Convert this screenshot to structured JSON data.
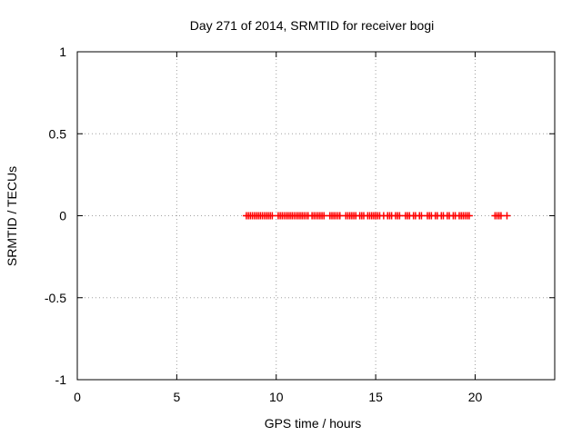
{
  "chart_data": {
    "type": "scatter",
    "title": "Day 271 of 2014, SRMTID for receiver bogi",
    "xlabel": "GPS time / hours",
    "ylabel": "SRMTID / TECUs",
    "xlim": [
      0,
      24
    ],
    "ylim": [
      -1,
      1
    ],
    "xticks": [
      0,
      5,
      10,
      15,
      20
    ],
    "yticks": [
      -1,
      -0.5,
      0,
      0.5,
      1
    ],
    "ytick_labels": [
      "-1",
      "-0.5",
      "0",
      "0.5",
      "1"
    ],
    "grid": true,
    "marker": "plus",
    "colors": {
      "series": "#ff0000",
      "grid": "#a0a0a0",
      "axes": "#000000"
    },
    "series": [
      {
        "x": [
          8.5,
          8.6,
          8.7,
          8.8,
          8.9,
          9.0,
          9.1,
          9.2,
          9.3,
          9.4,
          9.5,
          9.6,
          9.7,
          9.8,
          10.1,
          10.2,
          10.3,
          10.4,
          10.5,
          10.6,
          10.7,
          10.8,
          10.9,
          11.0,
          11.1,
          11.2,
          11.3,
          11.4,
          11.5,
          11.6,
          11.8,
          11.9,
          12.0,
          12.1,
          12.2,
          12.3,
          12.4,
          12.7,
          12.8,
          12.9,
          13.0,
          13.1,
          13.2,
          13.5,
          13.6,
          13.7,
          13.8,
          13.9,
          14.0,
          14.2,
          14.3,
          14.4,
          14.6,
          14.7,
          14.8,
          14.9,
          15.0,
          15.1,
          15.2,
          15.4,
          15.6,
          15.7,
          15.8,
          16.0,
          16.1,
          16.2,
          16.5,
          16.6,
          16.7,
          16.9,
          17.0,
          17.2,
          17.3,
          17.6,
          17.7,
          17.8,
          18.0,
          18.1,
          18.3,
          18.4,
          18.6,
          18.7,
          18.9,
          19.0,
          19.2,
          19.3,
          19.4,
          19.5,
          19.6,
          19.7,
          21.0,
          21.1,
          21.2,
          21.3,
          21.6
        ],
        "y": [
          0,
          0,
          0,
          0,
          0,
          0,
          0,
          0,
          0,
          0,
          0,
          0,
          0,
          0,
          0,
          0,
          0,
          0,
          0,
          0,
          0,
          0,
          0,
          0,
          0,
          0,
          0,
          0,
          0,
          0,
          0,
          0,
          0,
          0,
          0,
          0,
          0,
          0,
          0,
          0,
          0,
          0,
          0,
          0,
          0,
          0,
          0,
          0,
          0,
          0,
          0,
          0,
          0,
          0,
          0,
          0,
          0,
          0,
          0,
          0,
          0,
          0,
          0,
          0,
          0,
          0,
          0,
          0,
          0,
          0,
          0,
          0,
          0,
          0,
          0,
          0,
          0,
          0,
          0,
          0,
          0,
          0,
          0,
          0,
          0,
          0,
          0,
          0,
          0,
          0,
          0,
          0,
          0,
          0,
          0
        ]
      }
    ]
  }
}
